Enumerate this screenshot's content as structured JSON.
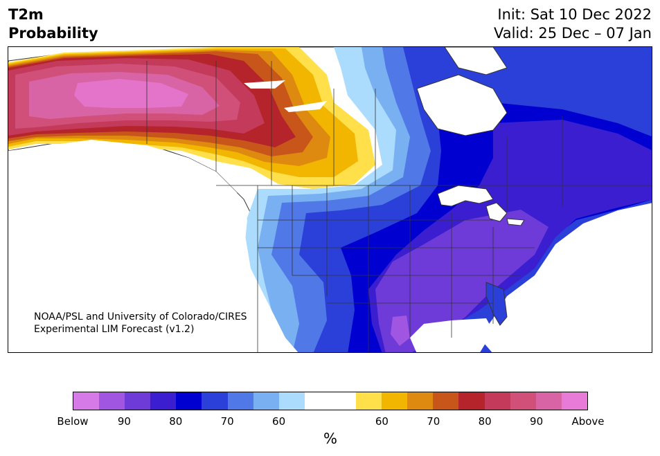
{
  "header": {
    "title_line1": "T2m",
    "title_line2": "Probability",
    "init": "Init: Sat 10 Dec 2022",
    "valid": "Valid: 25 Dec – 07 Jan"
  },
  "credit": {
    "line1": "NOAA/PSL and University of Colorado/CIRES",
    "line2": "Experimental LIM Forecast (v1.2)"
  },
  "colorbar": {
    "unit": "%",
    "colors": [
      "#d67ae8",
      "#a056e0",
      "#6f3bd8",
      "#3a1ecf",
      "#0000d0",
      "#2a40d8",
      "#5078e6",
      "#78b0f2",
      "#acdcfd",
      "#ffffff",
      "#ffffff",
      "#ffe04a",
      "#f2b600",
      "#de8a10",
      "#c8561a",
      "#b4242a",
      "#c43a5a",
      "#d0507a",
      "#d864a6",
      "#e87ad8"
    ],
    "labels": [
      "Below",
      "90",
      "80",
      "70",
      "60",
      "60",
      "70",
      "80",
      "90",
      "Above"
    ]
  },
  "map": {
    "region": "North America",
    "colors": {
      "ocean": "#ffffff",
      "above_strong": "#d864a6",
      "above_mid": "#d0507a",
      "above_red": "#b4242a",
      "above_orange": "#de8a10",
      "above_yellow": "#f2b600",
      "above_light": "#ffe04a",
      "below_light": "#acdcfd",
      "below_sky": "#78b0f2",
      "below_mid": "#5078e6",
      "below_blue": "#2a40d8",
      "below_deep": "#0000d0",
      "below_indigo": "#3a1ecf",
      "below_purple": "#6f3bd8",
      "borders": "#333333"
    }
  }
}
